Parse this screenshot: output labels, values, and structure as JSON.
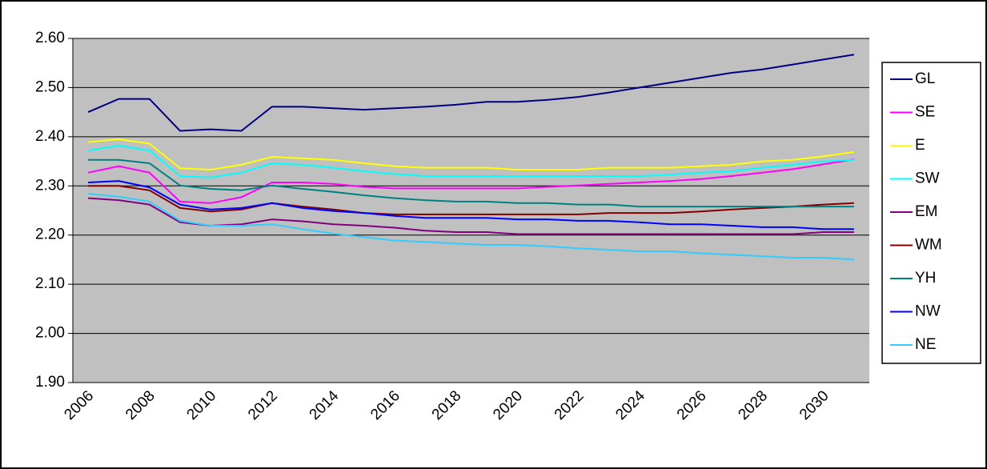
{
  "chart_data": {
    "type": "line",
    "categories": [
      "2006",
      null,
      "2008",
      null,
      "2010",
      null,
      "2012",
      null,
      "2014",
      null,
      "2016",
      null,
      "2018",
      null,
      "2020",
      null,
      "2022",
      null,
      "2024",
      null,
      "2026",
      null,
      "2028",
      null,
      "2030",
      null
    ],
    "ylim": [
      1.9,
      2.6
    ],
    "yticks": [
      {
        "value": 1.9,
        "label": "1.90"
      },
      {
        "value": 2.0,
        "label": "2.00"
      },
      {
        "value": 2.1,
        "label": "2.10"
      },
      {
        "value": 2.2,
        "label": "2.20"
      },
      {
        "value": 2.3,
        "label": "2.30"
      },
      {
        "value": 2.4,
        "label": "2.40"
      },
      {
        "value": 2.5,
        "label": "2.50"
      },
      {
        "value": 2.6,
        "label": "2.60"
      }
    ],
    "grid": true,
    "legend": "right",
    "background": "#c0c0c0",
    "series": [
      {
        "name": "GL",
        "color": "#000080",
        "values": [
          2.45,
          2.477,
          2.477,
          2.412,
          2.415,
          2.412,
          2.461,
          2.461,
          2.458,
          2.455,
          2.458,
          2.461,
          2.465,
          2.471,
          2.471,
          2.475,
          2.481,
          2.49,
          2.5,
          2.51,
          2.52,
          2.53,
          2.537,
          2.547,
          2.557,
          2.567
        ]
      },
      {
        "name": "SE",
        "color": "#ff00ff",
        "values": [
          2.327,
          2.34,
          2.327,
          2.268,
          2.265,
          2.277,
          2.307,
          2.307,
          2.304,
          2.298,
          2.295,
          2.295,
          2.295,
          2.295,
          2.295,
          2.298,
          2.301,
          2.304,
          2.307,
          2.31,
          2.314,
          2.32,
          2.327,
          2.334,
          2.344,
          2.354
        ]
      },
      {
        "name": "E",
        "color": "#ffff00",
        "values": [
          2.389,
          2.395,
          2.386,
          2.336,
          2.333,
          2.343,
          2.359,
          2.356,
          2.353,
          2.346,
          2.34,
          2.337,
          2.337,
          2.337,
          2.333,
          2.333,
          2.333,
          2.337,
          2.337,
          2.337,
          2.34,
          2.343,
          2.35,
          2.353,
          2.36,
          2.369
        ]
      },
      {
        "name": "SW",
        "color": "#00ffff",
        "values": [
          2.372,
          2.382,
          2.372,
          2.32,
          2.317,
          2.327,
          2.346,
          2.343,
          2.337,
          2.33,
          2.324,
          2.32,
          2.32,
          2.32,
          2.32,
          2.32,
          2.32,
          2.32,
          2.32,
          2.323,
          2.327,
          2.33,
          2.337,
          2.343,
          2.35,
          2.353
        ]
      },
      {
        "name": "EM",
        "color": "#800080",
        "values": [
          2.275,
          2.271,
          2.262,
          2.226,
          2.219,
          2.222,
          2.232,
          2.228,
          2.222,
          2.219,
          2.215,
          2.209,
          2.206,
          2.206,
          2.202,
          2.202,
          2.202,
          2.202,
          2.202,
          2.202,
          2.202,
          2.202,
          2.202,
          2.202,
          2.206,
          2.206
        ]
      },
      {
        "name": "WM",
        "color": "#800000",
        "values": [
          2.3,
          2.3,
          2.291,
          2.255,
          2.248,
          2.252,
          2.265,
          2.258,
          2.252,
          2.245,
          2.242,
          2.242,
          2.242,
          2.242,
          2.242,
          2.242,
          2.242,
          2.245,
          2.245,
          2.245,
          2.248,
          2.252,
          2.255,
          2.258,
          2.262,
          2.265
        ]
      },
      {
        "name": "YH",
        "color": "#008080",
        "values": [
          2.353,
          2.353,
          2.346,
          2.301,
          2.294,
          2.291,
          2.301,
          2.294,
          2.288,
          2.281,
          2.275,
          2.271,
          2.268,
          2.268,
          2.265,
          2.265,
          2.262,
          2.262,
          2.258,
          2.258,
          2.258,
          2.258,
          2.258,
          2.258,
          2.258,
          2.258
        ]
      },
      {
        "name": "NW",
        "color": "#0000ff",
        "values": [
          2.307,
          2.31,
          2.297,
          2.262,
          2.252,
          2.255,
          2.265,
          2.255,
          2.249,
          2.245,
          2.239,
          2.235,
          2.235,
          2.235,
          2.232,
          2.232,
          2.229,
          2.229,
          2.226,
          2.222,
          2.222,
          2.219,
          2.216,
          2.216,
          2.212,
          2.212
        ]
      },
      {
        "name": "NE",
        "color": "#33ccff",
        "values": [
          2.284,
          2.278,
          2.268,
          2.229,
          2.219,
          2.219,
          2.222,
          2.212,
          2.203,
          2.196,
          2.189,
          2.186,
          2.183,
          2.18,
          2.18,
          2.177,
          2.173,
          2.17,
          2.167,
          2.167,
          2.163,
          2.16,
          2.157,
          2.154,
          2.154,
          2.15
        ]
      }
    ]
  }
}
